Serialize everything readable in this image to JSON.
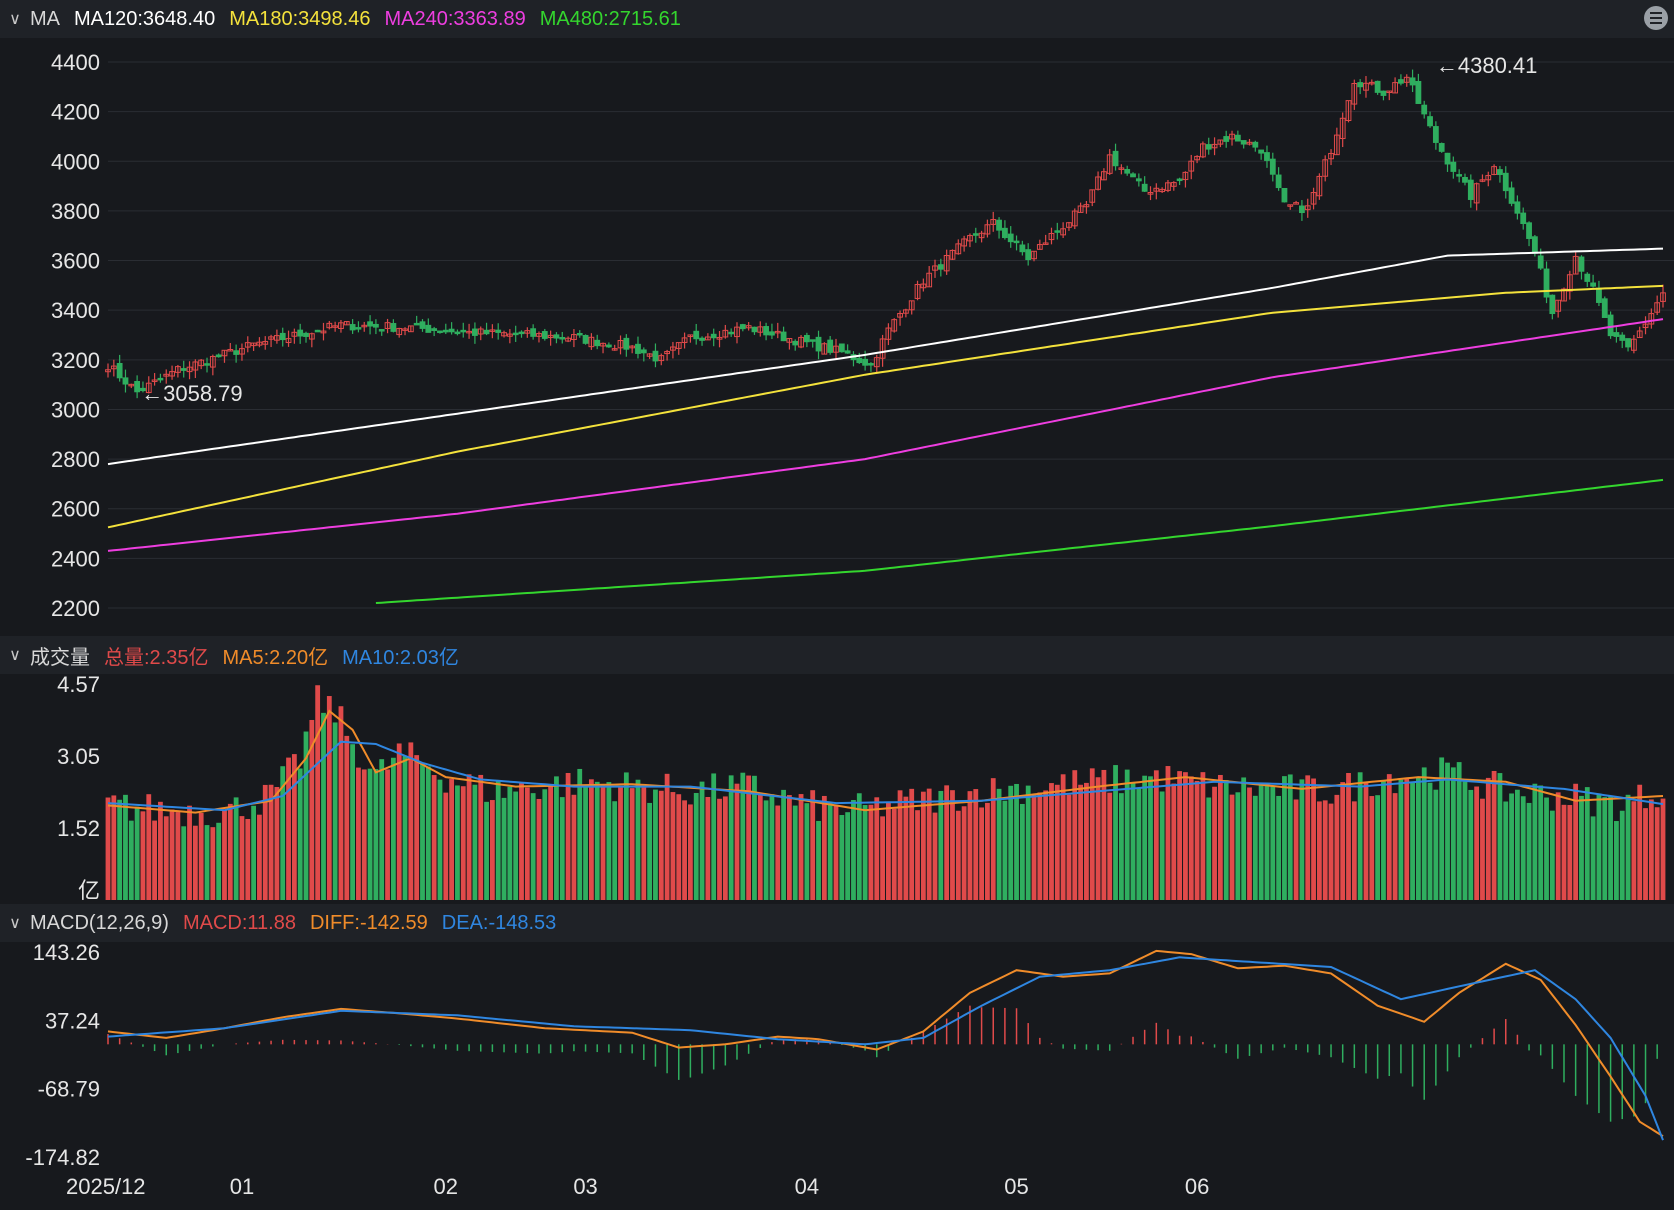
{
  "colors": {
    "up": "#e04a4a",
    "down": "#2fae5f",
    "ma120": "#ffffff",
    "ma180": "#f4e23c",
    "ma240": "#ee3ee0",
    "ma480": "#34d62e",
    "vol_ma5": "#f08c2a",
    "vol_ma10": "#2f86e0",
    "macd_diff": "#f08c2a",
    "macd_dea": "#2f86e0",
    "text": "#e6e6e6"
  },
  "legends": {
    "ma": {
      "name": "MA",
      "items": [
        {
          "text": "MA120:3648.40",
          "color": "#ffffff"
        },
        {
          "text": "MA180:3498.46",
          "color": "#f4e23c"
        },
        {
          "text": "MA240:3363.89",
          "color": "#ee3ee0"
        },
        {
          "text": "MA480:2715.61",
          "color": "#34d62e"
        }
      ]
    },
    "vol": {
      "name": "成交量",
      "items": [
        {
          "text": "总量:2.35亿",
          "color": "#e04a4a"
        },
        {
          "text": "MA5:2.20亿",
          "color": "#f08c2a"
        },
        {
          "text": "MA10:2.03亿",
          "color": "#2f86e0"
        }
      ]
    },
    "macd": {
      "name": "MACD(12,26,9)",
      "items": [
        {
          "text": "MACD:11.88",
          "color": "#e04a4a"
        },
        {
          "text": "DIFF:-142.59",
          "color": "#f08c2a"
        },
        {
          "text": "DEA:-148.53",
          "color": "#2f86e0"
        }
      ]
    }
  },
  "chart_data": [
    {
      "type": "candlestick",
      "id": "price",
      "y_ticks": [
        "4400",
        "4200",
        "4000",
        "3800",
        "3600",
        "3400",
        "3200",
        "3000",
        "2800",
        "2600",
        "2400",
        "2200"
      ],
      "ylim": [
        2200,
        4400
      ],
      "annotations": [
        {
          "text": "←4380.41",
          "value": 4380.41
        },
        {
          "text": "←3058.79",
          "value": 3058.79
        }
      ],
      "close_anchors": [
        {
          "i": 0,
          "v": 3180
        },
        {
          "i": 5,
          "v": 3070
        },
        {
          "i": 12,
          "v": 3160
        },
        {
          "i": 25,
          "v": 3260
        },
        {
          "i": 40,
          "v": 3340
        },
        {
          "i": 52,
          "v": 3330
        },
        {
          "i": 62,
          "v": 3310
        },
        {
          "i": 72,
          "v": 3300
        },
        {
          "i": 80,
          "v": 3290
        },
        {
          "i": 90,
          "v": 3250
        },
        {
          "i": 95,
          "v": 3200
        },
        {
          "i": 100,
          "v": 3290
        },
        {
          "i": 110,
          "v": 3330
        },
        {
          "i": 118,
          "v": 3280
        },
        {
          "i": 126,
          "v": 3230
        },
        {
          "i": 131,
          "v": 3180
        },
        {
          "i": 134,
          "v": 3320
        },
        {
          "i": 140,
          "v": 3520
        },
        {
          "i": 148,
          "v": 3690
        },
        {
          "i": 152,
          "v": 3750
        },
        {
          "i": 158,
          "v": 3610
        },
        {
          "i": 162,
          "v": 3700
        },
        {
          "i": 168,
          "v": 3820
        },
        {
          "i": 172,
          "v": 4020
        },
        {
          "i": 178,
          "v": 3880
        },
        {
          "i": 184,
          "v": 3920
        },
        {
          "i": 188,
          "v": 4060
        },
        {
          "i": 193,
          "v": 4100
        },
        {
          "i": 198,
          "v": 4050
        },
        {
          "i": 202,
          "v": 3820
        },
        {
          "i": 206,
          "v": 3810
        },
        {
          "i": 210,
          "v": 4050
        },
        {
          "i": 214,
          "v": 4330
        },
        {
          "i": 219,
          "v": 4280
        },
        {
          "i": 223,
          "v": 4340
        },
        {
          "i": 228,
          "v": 4080
        },
        {
          "i": 234,
          "v": 3860
        },
        {
          "i": 238,
          "v": 3990
        },
        {
          "i": 242,
          "v": 3800
        },
        {
          "i": 245,
          "v": 3630
        },
        {
          "i": 248,
          "v": 3390
        },
        {
          "i": 252,
          "v": 3620
        },
        {
          "i": 255,
          "v": 3480
        },
        {
          "i": 258,
          "v": 3300
        },
        {
          "i": 261,
          "v": 3240
        },
        {
          "i": 264,
          "v": 3350
        },
        {
          "i": 267,
          "v": 3470
        }
      ],
      "moving_averages": [
        {
          "name": "MA120",
          "color": "#ffffff",
          "points": [
            {
              "i": 0,
              "v": 2780
            },
            {
              "i": 130,
              "v": 3220
            },
            {
              "i": 200,
              "v": 3490
            },
            {
              "i": 230,
              "v": 3620
            },
            {
              "i": 267,
              "v": 3648
            }
          ]
        },
        {
          "name": "MA180",
          "color": "#f4e23c",
          "points": [
            {
              "i": 0,
              "v": 2525
            },
            {
              "i": 60,
              "v": 2830
            },
            {
              "i": 130,
              "v": 3140
            },
            {
              "i": 200,
              "v": 3390
            },
            {
              "i": 240,
              "v": 3470
            },
            {
              "i": 267,
              "v": 3498
            }
          ]
        },
        {
          "name": "MA240",
          "color": "#ee3ee0",
          "points": [
            {
              "i": 0,
              "v": 2430
            },
            {
              "i": 60,
              "v": 2580
            },
            {
              "i": 130,
              "v": 2800
            },
            {
              "i": 200,
              "v": 3130
            },
            {
              "i": 267,
              "v": 3364
            }
          ]
        },
        {
          "name": "MA480",
          "color": "#34d62e",
          "points": [
            {
              "i": 46,
              "v": 2220
            },
            {
              "i": 130,
              "v": 2350
            },
            {
              "i": 200,
              "v": 2530
            },
            {
              "i": 267,
              "v": 2716
            }
          ]
        }
      ]
    },
    {
      "type": "bar",
      "id": "volume",
      "unit": "亿",
      "y_ticks": [
        "4.57",
        "3.05",
        "1.52",
        "亿"
      ],
      "ylim": [
        0,
        4.57
      ],
      "anchors": [
        {
          "i": 0,
          "v": 2.0
        },
        {
          "i": 10,
          "v": 1.9
        },
        {
          "i": 20,
          "v": 1.85
        },
        {
          "i": 28,
          "v": 2.2
        },
        {
          "i": 33,
          "v": 3.0
        },
        {
          "i": 36,
          "v": 4.2
        },
        {
          "i": 39,
          "v": 4.0
        },
        {
          "i": 42,
          "v": 3.3
        },
        {
          "i": 46,
          "v": 2.6
        },
        {
          "i": 50,
          "v": 3.1
        },
        {
          "i": 54,
          "v": 2.9
        },
        {
          "i": 58,
          "v": 2.6
        },
        {
          "i": 66,
          "v": 2.3
        },
        {
          "i": 74,
          "v": 2.4
        },
        {
          "i": 82,
          "v": 2.5
        },
        {
          "i": 90,
          "v": 2.4
        },
        {
          "i": 100,
          "v": 2.3
        },
        {
          "i": 110,
          "v": 2.4
        },
        {
          "i": 120,
          "v": 2.0
        },
        {
          "i": 128,
          "v": 1.9
        },
        {
          "i": 134,
          "v": 2.0
        },
        {
          "i": 150,
          "v": 2.3
        },
        {
          "i": 170,
          "v": 2.5
        },
        {
          "i": 180,
          "v": 2.6
        },
        {
          "i": 190,
          "v": 2.4
        },
        {
          "i": 210,
          "v": 2.3
        },
        {
          "i": 220,
          "v": 2.6
        },
        {
          "i": 230,
          "v": 2.7
        },
        {
          "i": 240,
          "v": 2.3
        },
        {
          "i": 250,
          "v": 2.2
        },
        {
          "i": 260,
          "v": 2.0
        },
        {
          "i": 267,
          "v": 2.35
        }
      ],
      "ma5_points": [
        {
          "i": 0,
          "v": 2.0
        },
        {
          "i": 15,
          "v": 1.85
        },
        {
          "i": 28,
          "v": 2.1
        },
        {
          "i": 34,
          "v": 3.0
        },
        {
          "i": 38,
          "v": 4.0
        },
        {
          "i": 42,
          "v": 3.6
        },
        {
          "i": 46,
          "v": 2.7
        },
        {
          "i": 52,
          "v": 3.0
        },
        {
          "i": 58,
          "v": 2.6
        },
        {
          "i": 70,
          "v": 2.4
        },
        {
          "i": 90,
          "v": 2.45
        },
        {
          "i": 110,
          "v": 2.3
        },
        {
          "i": 130,
          "v": 1.9
        },
        {
          "i": 150,
          "v": 2.1
        },
        {
          "i": 170,
          "v": 2.4
        },
        {
          "i": 185,
          "v": 2.6
        },
        {
          "i": 205,
          "v": 2.35
        },
        {
          "i": 225,
          "v": 2.6
        },
        {
          "i": 240,
          "v": 2.5
        },
        {
          "i": 252,
          "v": 2.1
        },
        {
          "i": 267,
          "v": 2.2
        }
      ],
      "ma10_points": [
        {
          "i": 0,
          "v": 2.05
        },
        {
          "i": 20,
          "v": 1.9
        },
        {
          "i": 30,
          "v": 2.2
        },
        {
          "i": 40,
          "v": 3.35
        },
        {
          "i": 46,
          "v": 3.3
        },
        {
          "i": 54,
          "v": 2.9
        },
        {
          "i": 64,
          "v": 2.55
        },
        {
          "i": 80,
          "v": 2.4
        },
        {
          "i": 100,
          "v": 2.4
        },
        {
          "i": 125,
          "v": 2.05
        },
        {
          "i": 150,
          "v": 2.1
        },
        {
          "i": 170,
          "v": 2.3
        },
        {
          "i": 190,
          "v": 2.5
        },
        {
          "i": 215,
          "v": 2.4
        },
        {
          "i": 230,
          "v": 2.55
        },
        {
          "i": 250,
          "v": 2.35
        },
        {
          "i": 267,
          "v": 2.03
        }
      ]
    },
    {
      "type": "line",
      "id": "macd",
      "y_ticks": [
        "143.26",
        "37.24",
        "-68.79",
        "-174.82"
      ],
      "ylim": [
        -174.82,
        143.26
      ],
      "diff_points": [
        {
          "i": 0,
          "v": 20
        },
        {
          "i": 10,
          "v": 10
        },
        {
          "i": 20,
          "v": 25
        },
        {
          "i": 30,
          "v": 42
        },
        {
          "i": 40,
          "v": 55
        },
        {
          "i": 50,
          "v": 48
        },
        {
          "i": 60,
          "v": 40
        },
        {
          "i": 75,
          "v": 25
        },
        {
          "i": 90,
          "v": 18
        },
        {
          "i": 98,
          "v": -5
        },
        {
          "i": 106,
          "v": 0
        },
        {
          "i": 115,
          "v": 12
        },
        {
          "i": 122,
          "v": 8
        },
        {
          "i": 132,
          "v": -8
        },
        {
          "i": 140,
          "v": 20
        },
        {
          "i": 148,
          "v": 80
        },
        {
          "i": 156,
          "v": 115
        },
        {
          "i": 164,
          "v": 105
        },
        {
          "i": 172,
          "v": 110
        },
        {
          "i": 180,
          "v": 145
        },
        {
          "i": 186,
          "v": 140
        },
        {
          "i": 194,
          "v": 118
        },
        {
          "i": 202,
          "v": 122
        },
        {
          "i": 210,
          "v": 110
        },
        {
          "i": 218,
          "v": 60
        },
        {
          "i": 226,
          "v": 35
        },
        {
          "i": 232,
          "v": 80
        },
        {
          "i": 240,
          "v": 125
        },
        {
          "i": 246,
          "v": 100
        },
        {
          "i": 252,
          "v": 30
        },
        {
          "i": 258,
          "v": -50
        },
        {
          "i": 263,
          "v": -120
        },
        {
          "i": 267,
          "v": -142.59
        }
      ],
      "dea_points": [
        {
          "i": 0,
          "v": 12
        },
        {
          "i": 20,
          "v": 25
        },
        {
          "i": 40,
          "v": 52
        },
        {
          "i": 60,
          "v": 45
        },
        {
          "i": 80,
          "v": 28
        },
        {
          "i": 100,
          "v": 22
        },
        {
          "i": 115,
          "v": 8
        },
        {
          "i": 130,
          "v": 0
        },
        {
          "i": 140,
          "v": 10
        },
        {
          "i": 150,
          "v": 60
        },
        {
          "i": 160,
          "v": 105
        },
        {
          "i": 172,
          "v": 115
        },
        {
          "i": 184,
          "v": 135
        },
        {
          "i": 196,
          "v": 128
        },
        {
          "i": 210,
          "v": 120
        },
        {
          "i": 222,
          "v": 70
        },
        {
          "i": 232,
          "v": 90
        },
        {
          "i": 245,
          "v": 115
        },
        {
          "i": 252,
          "v": 70
        },
        {
          "i": 258,
          "v": 10
        },
        {
          "i": 264,
          "v": -80
        },
        {
          "i": 267,
          "v": -148.53
        }
      ]
    }
  ],
  "x_axis": {
    "bars": 268,
    "labels": [
      {
        "text": "2025/12",
        "i": 0
      },
      {
        "text": "01",
        "i": 23
      },
      {
        "text": "02",
        "i": 58
      },
      {
        "text": "03",
        "i": 82
      },
      {
        "text": "04",
        "i": 120
      },
      {
        "text": "05",
        "i": 156
      },
      {
        "text": "06",
        "i": 187
      }
    ]
  }
}
